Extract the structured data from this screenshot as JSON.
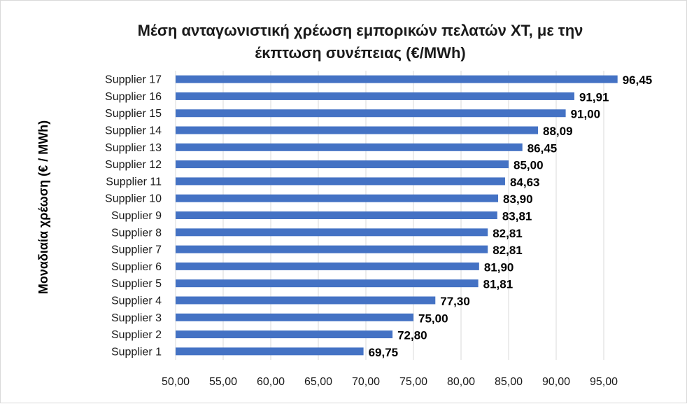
{
  "chart_data": {
    "type": "bar",
    "orientation": "horizontal",
    "title_lines": [
      "Μέση ανταγωνιστική χρέωση εμπορικών πελατών ΧΤ, με την",
      "έκπτωση συνέπειας (€/MWh)"
    ],
    "ylabel": "Μοναδιαία χρέωση (€ / MWh)",
    "xlabel": "",
    "categories": [
      "Supplier 1",
      "Supplier 2",
      "Supplier 3",
      "Supplier 4",
      "Supplier 5",
      "Supplier 6",
      "Supplier 7",
      "Supplier 8",
      "Supplier 9",
      "Supplier 10",
      "Supplier 11",
      "Supplier 12",
      "Supplier 13",
      "Supplier 14",
      "Supplier 15",
      "Supplier 16",
      "Supplier 17"
    ],
    "values": [
      69.75,
      72.8,
      75.0,
      77.3,
      81.81,
      81.9,
      82.81,
      82.81,
      83.81,
      83.9,
      84.63,
      85.0,
      86.45,
      88.09,
      91.0,
      91.91,
      96.45
    ],
    "value_labels": [
      "69,75",
      "72,80",
      "75,00",
      "77,30",
      "81,81",
      "81,90",
      "82,81",
      "82,81",
      "83,81",
      "83,90",
      "84,63",
      "85,00",
      "86,45",
      "88,09",
      "91,00",
      "91,91",
      "96,45"
    ],
    "xlim": [
      50,
      95
    ],
    "xticks": [
      50,
      55,
      60,
      65,
      70,
      75,
      80,
      85,
      90,
      95
    ],
    "xtick_labels": [
      "50,00",
      "55,00",
      "60,00",
      "65,00",
      "70,00",
      "75,00",
      "80,00",
      "85,00",
      "90,00",
      "95,00"
    ],
    "grid": true,
    "legend": false,
    "bar_color": "#4472c4"
  }
}
